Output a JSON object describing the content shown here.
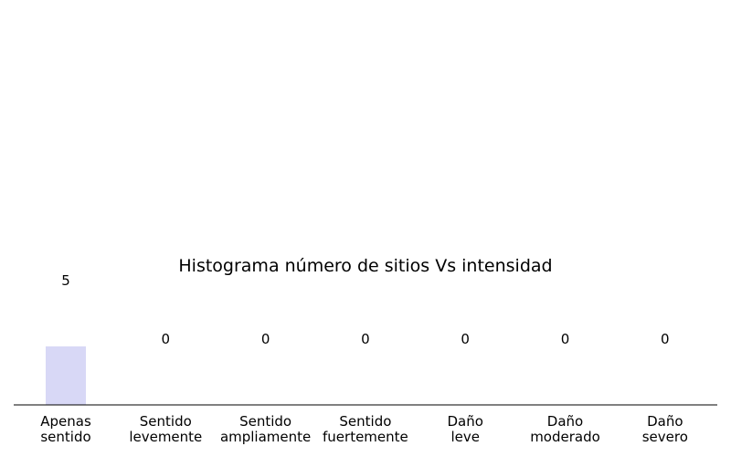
{
  "chart_data": {
    "type": "bar",
    "title": "Histograma número de sitios Vs intensidad",
    "xlabel": "",
    "ylabel": "",
    "categories": [
      "Apenas\nsentido",
      "Sentido\nlevemente",
      "Sentido\nampliamente",
      "Sentido\nfuertemente",
      "Daño\nleve",
      "Daño\nmoderado",
      "Daño\nsevero"
    ],
    "values": [
      5,
      0,
      0,
      0,
      0,
      0,
      0
    ],
    "data_labels": [
      "5",
      "0",
      "0",
      "0",
      "0",
      "0",
      "0"
    ],
    "bar_color": "#d8d8f6",
    "grid": false,
    "legend": "none"
  }
}
